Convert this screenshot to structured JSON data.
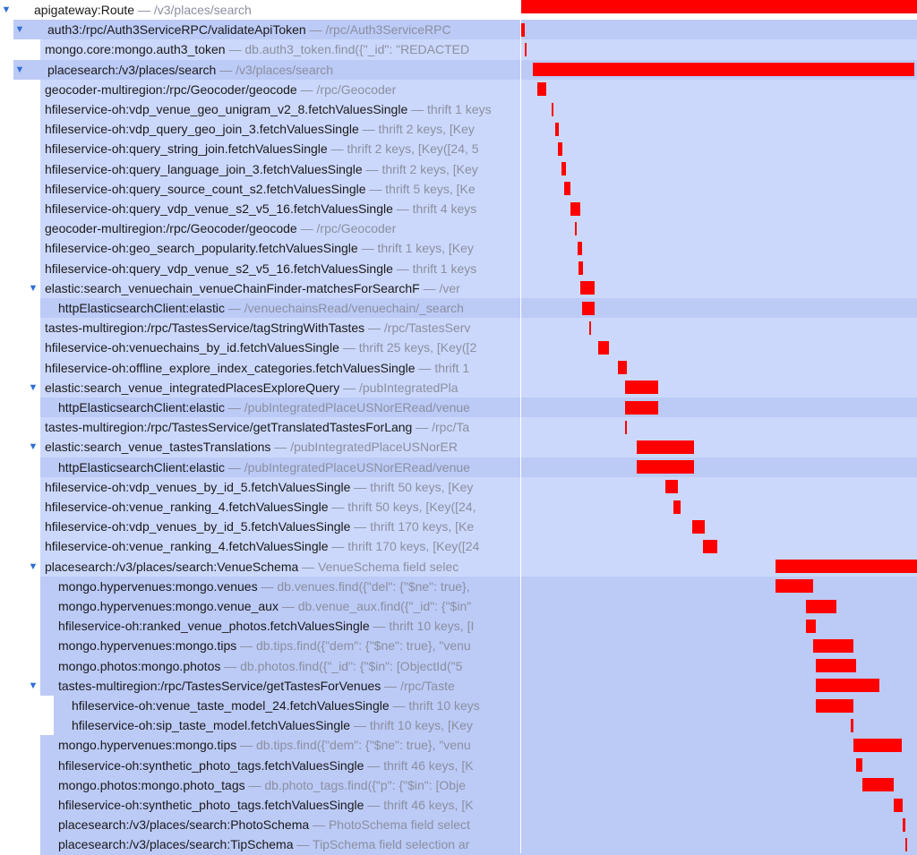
{
  "theme": {
    "bar_color": "#ff0000",
    "row_color": "#ccd8fb",
    "selected_row_color": "#bccaf6",
    "toggle_color": "#2f6fd6",
    "detail_color": "#8a8fa0"
  },
  "timeline": {
    "start": 0,
    "end": 1000
  },
  "spans": [
    {
      "name": "apigateway:Route",
      "detail": "/v3/places/search",
      "depth": 0,
      "toggle": "expanded",
      "start": 0,
      "end": 1000
    },
    {
      "name": "auth3:/rpc/Auth3ServiceRPC/validateApiToken",
      "detail": "/rpc/Auth3ServiceRPC",
      "depth": 1,
      "toggle": "expanded",
      "start": 0,
      "end": 10,
      "selected": true
    },
    {
      "name": "mongo.core:mongo.auth3_token",
      "detail": "db.auth3_token.find({\"_id\": \"REDACTED",
      "depth": 2,
      "start": 10,
      "end": 13
    },
    {
      "name": "placesearch:/v3/places/search",
      "detail": "/v3/places/search",
      "depth": 1,
      "toggle": "expanded",
      "start": 29,
      "end": 993,
      "selected": true
    },
    {
      "name": "geocoder-multiregion:/rpc/Geocoder/geocode",
      "detail": "/rpc/Geocoder",
      "depth": 2,
      "start": 41,
      "end": 64
    },
    {
      "name": "hfileservice-oh:vdp_venue_geo_unigram_v2_8.fetchValuesSingle",
      "detail": "thrift 1 keys",
      "depth": 2,
      "start": 77,
      "end": 82
    },
    {
      "name": "hfileservice-oh:vdp_query_geo_join_3.fetchValuesSingle",
      "detail": "thrift 2 keys, [Key",
      "depth": 2,
      "start": 86,
      "end": 96
    },
    {
      "name": "hfileservice-oh:query_string_join.fetchValuesSingle",
      "detail": "thrift 2 keys, [Key([24, 5",
      "depth": 2,
      "start": 93,
      "end": 105
    },
    {
      "name": "hfileservice-oh:query_language_join_3.fetchValuesSingle",
      "detail": "thrift 2 keys, [Key",
      "depth": 2,
      "start": 102,
      "end": 114
    },
    {
      "name": "hfileservice-oh:query_source_count_s2.fetchValuesSingle",
      "detail": "thrift 5 keys, [Ke",
      "depth": 2,
      "start": 108,
      "end": 124
    },
    {
      "name": "hfileservice-oh:query_vdp_venue_s2_v5_16.fetchValuesSingle",
      "detail": "thrift 4 keys",
      "depth": 2,
      "start": 124,
      "end": 150
    },
    {
      "name": "geocoder-multiregion:/rpc/Geocoder/geocode",
      "detail": "/rpc/Geocoder",
      "depth": 2,
      "start": 135,
      "end": 139
    },
    {
      "name": "hfileservice-oh:geo_search_popularity.fetchValuesSingle",
      "detail": "thrift 1 keys, [Key",
      "depth": 2,
      "start": 142,
      "end": 154
    },
    {
      "name": "hfileservice-oh:query_vdp_venue_s2_v5_16.fetchValuesSingle",
      "detail": "thrift 1 keys",
      "depth": 2,
      "start": 145,
      "end": 157
    },
    {
      "name": "elastic:search_venuechain_venueChainFinder-matchesForSearchF",
      "detail": "/ver",
      "depth": 2,
      "toggle": "expanded",
      "start": 150,
      "end": 186
    },
    {
      "name": "httpElasticsearchClient:elastic",
      "detail": "/venuechainsRead/venuechain/_search",
      "depth": 3,
      "start": 154,
      "end": 186,
      "selected": true
    },
    {
      "name": "tastes-multiregion:/rpc/TastesService/tagStringWithTastes",
      "detail": "/rpc/TastesServ",
      "depth": 2,
      "start": 172,
      "end": 175
    },
    {
      "name": "hfileservice-oh:venuechains_by_id.fetchValuesSingle",
      "detail": "thrift 25 keys, [Key([2",
      "depth": 2,
      "start": 195,
      "end": 222
    },
    {
      "name": "hfileservice-oh:offline_explore_index_categories.fetchValuesSingle",
      "detail": "thrift 1",
      "depth": 2,
      "start": 244,
      "end": 266
    },
    {
      "name": "elastic:search_venue_integratedPlacesExploreQuery",
      "detail": "/pubIntegratedPla",
      "depth": 2,
      "toggle": "expanded",
      "start": 262,
      "end": 346
    },
    {
      "name": "httpElasticsearchClient:elastic",
      "detail": "/pubIntegratedPlaceUSNorERead/venue",
      "depth": 3,
      "start": 262,
      "end": 346,
      "selected": true
    },
    {
      "name": "tastes-multiregion:/rpc/TastesService/getTranslatedTastesForLang",
      "detail": "/rpc/Ta",
      "depth": 2,
      "start": 262,
      "end": 266
    },
    {
      "name": "elastic:search_venue_tastesTranslations",
      "detail": "/pubIntegratedPlaceUSNorER",
      "depth": 2,
      "toggle": "expanded",
      "start": 292,
      "end": 436
    },
    {
      "name": "httpElasticsearchClient:elastic",
      "detail": "/pubIntegratedPlaceUSNorERead/venue",
      "depth": 3,
      "start": 292,
      "end": 436,
      "selected": true
    },
    {
      "name": "hfileservice-oh:vdp_venues_by_id_5.fetchValuesSingle",
      "detail": "thrift 50 keys, [Key",
      "depth": 2,
      "start": 364,
      "end": 395
    },
    {
      "name": "hfileservice-oh:venue_ranking_4.fetchValuesSingle",
      "detail": "thrift 50 keys, [Key([24,",
      "depth": 2,
      "start": 384,
      "end": 402
    },
    {
      "name": "hfileservice-oh:vdp_venues_by_id_5.fetchValuesSingle",
      "detail": "thrift 170 keys, [Ke",
      "depth": 2,
      "start": 433,
      "end": 464
    },
    {
      "name": "hfileservice-oh:venue_ranking_4.fetchValuesSingle",
      "detail": "thrift 170 keys, [Key([24",
      "depth": 2,
      "start": 459,
      "end": 495
    },
    {
      "name": "placesearch:/v3/places/search:VenueSchema",
      "detail": "VenueSchema field selec",
      "depth": 2,
      "toggle": "expanded",
      "start": 643,
      "end": 1000
    },
    {
      "name": "mongo.hypervenues:mongo.venues",
      "detail": "db.venues.find({\"del\": {\"$ne\": true},",
      "depth": 3,
      "start": 643,
      "end": 737,
      "selected": true
    },
    {
      "name": "mongo.hypervenues:mongo.venue_aux",
      "detail": "db.venue_aux.find({\"_id\": {\"$in\"",
      "depth": 3,
      "start": 720,
      "end": 797,
      "selected": true
    },
    {
      "name": "hfileservice-oh:ranked_venue_photos.fetchValuesSingle",
      "detail": "thrift 10 keys, [I",
      "depth": 3,
      "start": 720,
      "end": 744,
      "selected": true
    },
    {
      "name": "mongo.hypervenues:mongo.tips",
      "detail": "db.tips.find({\"dem\": {\"$ne\": true}, \"venu",
      "depth": 3,
      "start": 737,
      "end": 839,
      "selected": true
    },
    {
      "name": "mongo.photos:mongo.photos",
      "detail": "db.photos.find({\"_id\": {\"$in\": [ObjectId(\"5",
      "depth": 3,
      "start": 744,
      "end": 846,
      "selected": true
    },
    {
      "name": "tastes-multiregion:/rpc/TastesService/getTastesForVenues",
      "detail": "/rpc/Taste",
      "depth": 3,
      "toggle": "expanded",
      "start": 744,
      "end": 904,
      "selected": true
    },
    {
      "name": "hfileservice-oh:venue_taste_model_24.fetchValuesSingle",
      "detail": "thrift 10 keys",
      "depth": 4,
      "start": 744,
      "end": 839,
      "selected": true
    },
    {
      "name": "hfileservice-oh:sip_taste_model.fetchValuesSingle",
      "detail": "thrift 10 keys, [Key",
      "depth": 4,
      "start": 832,
      "end": 839,
      "selected": true
    },
    {
      "name": "mongo.hypervenues:mongo.tips",
      "detail": "db.tips.find({\"dem\": {\"$ne\": true}, \"venu",
      "depth": 3,
      "start": 839,
      "end": 961,
      "selected": true
    },
    {
      "name": "hfileservice-oh:synthetic_photo_tags.fetchValuesSingle",
      "detail": "thrift 46 keys, [K",
      "depth": 3,
      "start": 846,
      "end": 861,
      "selected": true
    },
    {
      "name": "mongo.photos:mongo.photo_tags",
      "detail": "db.photo_tags.find({\"p\": {\"$in\": [Obje",
      "depth": 3,
      "start": 861,
      "end": 942,
      "selected": true
    },
    {
      "name": "hfileservice-oh:synthetic_photo_tags.fetchValuesSingle",
      "detail": "thrift 46 keys, [K",
      "depth": 3,
      "start": 942,
      "end": 964,
      "selected": true
    },
    {
      "name": "placesearch:/v3/places/search:PhotoSchema",
      "detail": "PhotoSchema field select",
      "depth": 3,
      "start": 964,
      "end": 971,
      "selected": true
    },
    {
      "name": "placesearch:/v3/places/search:TipSchema",
      "detail": "TipSchema field selection ar",
      "depth": 3,
      "start": 971,
      "end": 975,
      "selected": true
    }
  ]
}
